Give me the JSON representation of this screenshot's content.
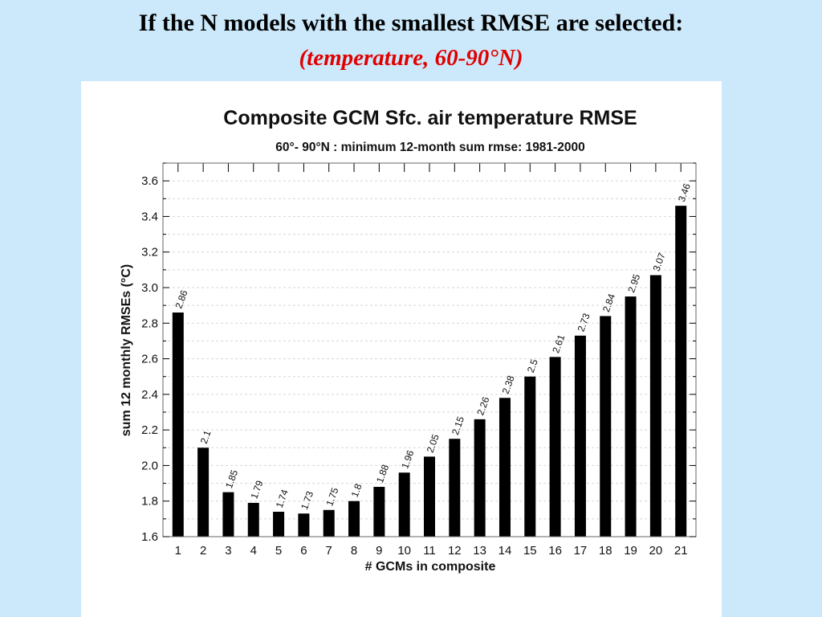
{
  "slide": {
    "title": "If the N models with the smallest RMSE are selected:",
    "subtitle": "(temperature, 60-90°N)",
    "subtitle_color": "#e00000"
  },
  "chart_data": {
    "type": "bar",
    "title": "Composite GCM Sfc. air temperature RMSE",
    "subtitle": "60°- 90°N : minimum 12-month sum rmse: 1981-2000",
    "xlabel": "# GCMs in composite",
    "ylabel": "sum 12 monthly RMSEs (°C)",
    "categories": [
      "1",
      "2",
      "3",
      "4",
      "5",
      "6",
      "7",
      "8",
      "9",
      "10",
      "11",
      "12",
      "13",
      "14",
      "15",
      "16",
      "17",
      "18",
      "19",
      "20",
      "21"
    ],
    "values": [
      2.86,
      2.1,
      1.85,
      1.79,
      1.74,
      1.73,
      1.75,
      1.8,
      1.88,
      1.96,
      2.05,
      2.15,
      2.26,
      2.38,
      2.5,
      2.61,
      2.73,
      2.84,
      2.95,
      3.07,
      3.46
    ],
    "data_labels": [
      "2.86",
      "2.1",
      "1.85",
      "1.79",
      "1.74",
      "1.73",
      "1.75",
      "1.8",
      "1.88",
      "1.96",
      "2.05",
      "2.15",
      "2.26",
      "2.38",
      "2.5",
      "2.61",
      "2.73",
      "2.84",
      "2.95",
      "3.07",
      "3.46"
    ],
    "ylim": [
      1.6,
      3.7
    ],
    "yticks": [
      1.6,
      1.8,
      2.0,
      2.2,
      2.4,
      2.6,
      2.8,
      3.0,
      3.2,
      3.4,
      3.6
    ],
    "ytick_labels": [
      "1.6",
      "1.8",
      "2.0",
      "2.2",
      "2.4",
      "2.6",
      "2.8",
      "3.0",
      "3.2",
      "3.4",
      "3.6"
    ],
    "grid": true,
    "bar_color": "#000000",
    "legend": "none"
  }
}
